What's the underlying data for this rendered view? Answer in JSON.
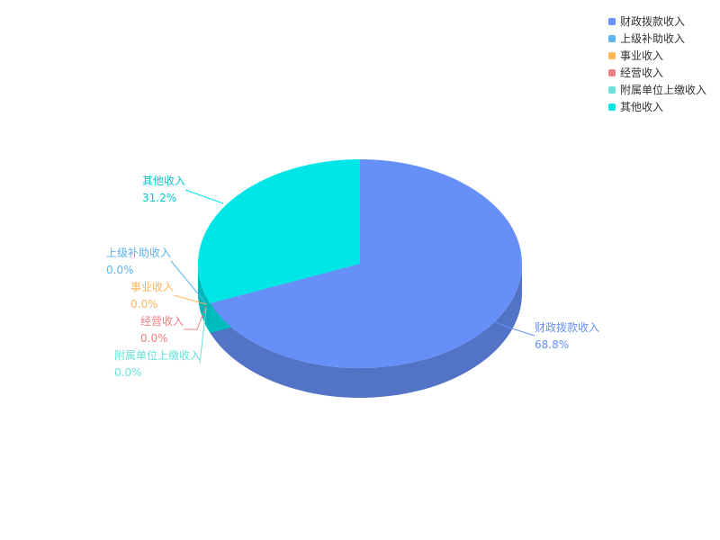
{
  "chart_data": {
    "type": "pie",
    "style": "3d",
    "legend_position": "top-right",
    "series": [
      {
        "name": "财政拨款收入",
        "value": 68.8,
        "label": "68.8%",
        "color": "#6690f8"
      },
      {
        "name": "上级补助收入",
        "value": 0.0,
        "label": "0.0%",
        "color": "#5ab4f0"
      },
      {
        "name": "事业收入",
        "value": 0.0,
        "label": "0.0%",
        "color": "#ffb55a"
      },
      {
        "name": "经营收入",
        "value": 0.0,
        "label": "0.0%",
        "color": "#f08080"
      },
      {
        "name": "附属单位上缴收入",
        "value": 0.0,
        "label": "0.0%",
        "color": "#6ce0da"
      },
      {
        "name": "其他收入",
        "value": 31.2,
        "label": "31.2%",
        "color": "#00e5e5"
      }
    ]
  }
}
